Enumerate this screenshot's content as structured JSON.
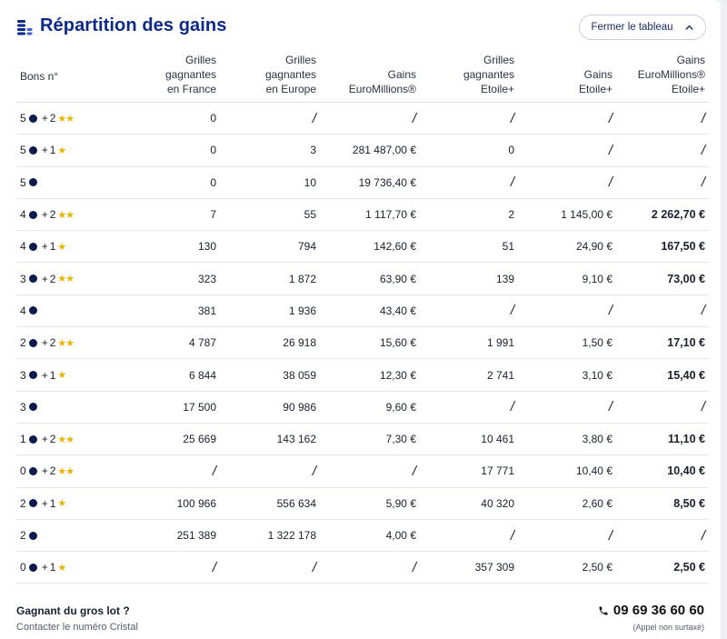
{
  "header": {
    "title": "Répartition des gains",
    "icon": "coins-stack-icon",
    "close_label": "Fermer le tableau"
  },
  "table": {
    "columns": [
      "Bons n°",
      "Grilles\ngagnantes\nen France",
      "Grilles\ngagnantes\nen Europe",
      "Gains\nEuroMillions®",
      "Grilles\ngagnantes\nEtoile+",
      "Gains\nEtoile+",
      "Gains\nEuroMillions®\nEtoile+"
    ],
    "rows": [
      {
        "balls": "5",
        "stars": "2",
        "france": "0",
        "europe": "/",
        "gains_em": "/",
        "etoile_grids": "/",
        "gains_etoile": "/",
        "gains_total": "/"
      },
      {
        "balls": "5",
        "stars": "1",
        "france": "0",
        "europe": "3",
        "gains_em": "281 487,00 €",
        "etoile_grids": "0",
        "gains_etoile": "/",
        "gains_total": "/"
      },
      {
        "balls": "5",
        "stars": "",
        "france": "0",
        "europe": "10",
        "gains_em": "19 736,40 €",
        "etoile_grids": "/",
        "gains_etoile": "/",
        "gains_total": "/"
      },
      {
        "balls": "4",
        "stars": "2",
        "france": "7",
        "europe": "55",
        "gains_em": "1 117,70 €",
        "etoile_grids": "2",
        "gains_etoile": "1 145,00 €",
        "gains_total": "2 262,70 €"
      },
      {
        "balls": "4",
        "stars": "1",
        "france": "130",
        "europe": "794",
        "gains_em": "142,60 €",
        "etoile_grids": "51",
        "gains_etoile": "24,90 €",
        "gains_total": "167,50 €"
      },
      {
        "balls": "3",
        "stars": "2",
        "france": "323",
        "europe": "1 872",
        "gains_em": "63,90 €",
        "etoile_grids": "139",
        "gains_etoile": "9,10 €",
        "gains_total": "73,00 €"
      },
      {
        "balls": "4",
        "stars": "",
        "france": "381",
        "europe": "1 936",
        "gains_em": "43,40 €",
        "etoile_grids": "/",
        "gains_etoile": "/",
        "gains_total": "/"
      },
      {
        "balls": "2",
        "stars": "2",
        "france": "4 787",
        "europe": "26 918",
        "gains_em": "15,60 €",
        "etoile_grids": "1 991",
        "gains_etoile": "1,50 €",
        "gains_total": "17,10 €"
      },
      {
        "balls": "3",
        "stars": "1",
        "france": "6 844",
        "europe": "38 059",
        "gains_em": "12,30 €",
        "etoile_grids": "2 741",
        "gains_etoile": "3,10 €",
        "gains_total": "15,40 €"
      },
      {
        "balls": "3",
        "stars": "",
        "france": "17 500",
        "europe": "90 986",
        "gains_em": "9,60 €",
        "etoile_grids": "/",
        "gains_etoile": "/",
        "gains_total": "/"
      },
      {
        "balls": "1",
        "stars": "2",
        "france": "25 669",
        "europe": "143 162",
        "gains_em": "7,30 €",
        "etoile_grids": "10 461",
        "gains_etoile": "3,80 €",
        "gains_total": "11,10 €"
      },
      {
        "balls": "0",
        "stars": "2",
        "france": "/",
        "europe": "/",
        "gains_em": "/",
        "etoile_grids": "17 771",
        "gains_etoile": "10,40 €",
        "gains_total": "10,40 €"
      },
      {
        "balls": "2",
        "stars": "1",
        "france": "100 966",
        "europe": "556 634",
        "gains_em": "5,90 €",
        "etoile_grids": "40 320",
        "gains_etoile": "2,60 €",
        "gains_total": "8,50 €"
      },
      {
        "balls": "2",
        "stars": "",
        "france": "251 389",
        "europe": "1 322 178",
        "gains_em": "4,00 €",
        "etoile_grids": "/",
        "gains_etoile": "/",
        "gains_total": "/"
      },
      {
        "balls": "0",
        "stars": "1",
        "france": "/",
        "europe": "/",
        "gains_em": "/",
        "etoile_grids": "357 309",
        "gains_etoile": "2,50 €",
        "gains_total": "2,50 €"
      }
    ]
  },
  "footer": {
    "title": "Gagnant du gros lot ?",
    "subtitle": "Contacter le numéro Cristal",
    "phone": "09 69 36 60 60",
    "phone_note": "(Appel non surtaxé)"
  },
  "colors": {
    "title": "#0b2a8a",
    "ball": "#0b1a4d",
    "star": "#e8b400"
  }
}
